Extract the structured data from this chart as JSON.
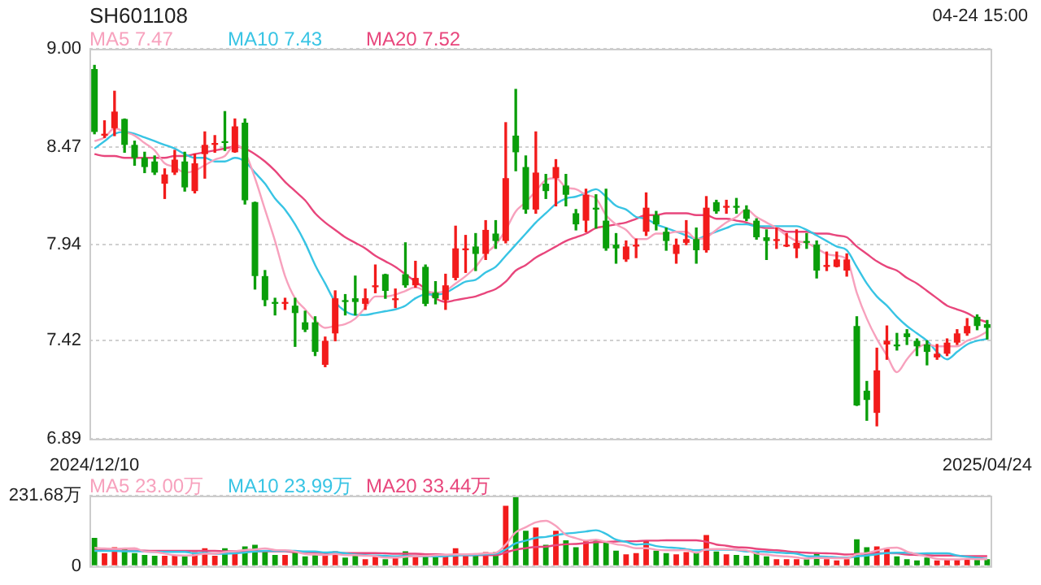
{
  "chart_data": [
    {
      "type": "candlestick",
      "title": "SH601108",
      "annotations": [
        "04-24 15:00"
      ],
      "categories": [
        "2024/12/10",
        null,
        null,
        null,
        null,
        null,
        null,
        null,
        null,
        null,
        null,
        null,
        null,
        null,
        null,
        null,
        null,
        null,
        null,
        null,
        null,
        null,
        null,
        null,
        null,
        null,
        null,
        null,
        null,
        null,
        null,
        null,
        null,
        null,
        null,
        null,
        null,
        null,
        null,
        null,
        null,
        null,
        null,
        null,
        null,
        null,
        null,
        null,
        null,
        null,
        null,
        null,
        null,
        null,
        null,
        null,
        null,
        null,
        null,
        null,
        null,
        null,
        null,
        null,
        null,
        null,
        null,
        null,
        null,
        null,
        null,
        null,
        null,
        null,
        null,
        null,
        null,
        null,
        null,
        null,
        null,
        null,
        null,
        null,
        null,
        null,
        null,
        null,
        null,
        "2025/04/24"
      ],
      "ohlc": [
        [
          8.89,
          8.91,
          8.54,
          8.55
        ],
        [
          8.53,
          8.61,
          8.52,
          8.54
        ],
        [
          8.57,
          8.77,
          8.53,
          8.66
        ],
        [
          8.62,
          8.62,
          8.44,
          8.48
        ],
        [
          8.48,
          8.5,
          8.37,
          8.41
        ],
        [
          8.41,
          8.44,
          8.33,
          8.36
        ],
        [
          8.39,
          8.42,
          8.32,
          8.33
        ],
        [
          8.27,
          8.35,
          8.19,
          8.32
        ],
        [
          8.33,
          8.45,
          8.32,
          8.4
        ],
        [
          8.39,
          8.44,
          8.23,
          8.25
        ],
        [
          8.23,
          8.43,
          8.22,
          8.38
        ],
        [
          8.43,
          8.55,
          8.3,
          8.48
        ],
        [
          8.48,
          8.53,
          8.44,
          8.49
        ],
        [
          8.5,
          8.66,
          8.45,
          8.49
        ],
        [
          8.44,
          8.62,
          8.44,
          8.58
        ],
        [
          8.6,
          8.62,
          8.16,
          8.18
        ],
        [
          8.17,
          8.17,
          7.7,
          7.77
        ],
        [
          7.77,
          7.8,
          7.61,
          7.64
        ],
        [
          7.63,
          7.65,
          7.56,
          7.62
        ],
        [
          7.62,
          7.65,
          7.59,
          7.63
        ],
        [
          7.61,
          7.65,
          7.39,
          7.57
        ],
        [
          7.52,
          7.58,
          7.47,
          7.48
        ],
        [
          7.52,
          7.55,
          7.34,
          7.36
        ],
        [
          7.29,
          7.44,
          7.28,
          7.42
        ],
        [
          7.46,
          7.69,
          7.42,
          7.65
        ],
        [
          7.64,
          7.67,
          7.56,
          7.63
        ],
        [
          7.65,
          7.77,
          7.56,
          7.63
        ],
        [
          7.62,
          7.7,
          7.59,
          7.65
        ],
        [
          7.71,
          7.83,
          7.68,
          7.72
        ],
        [
          7.78,
          7.78,
          7.65,
          7.69
        ],
        [
          7.64,
          7.7,
          7.6,
          7.65
        ],
        [
          7.78,
          7.95,
          7.71,
          7.72
        ],
        [
          7.72,
          7.85,
          7.71,
          7.76
        ],
        [
          7.82,
          7.83,
          7.61,
          7.62
        ],
        [
          7.68,
          7.74,
          7.62,
          7.65
        ],
        [
          7.64,
          7.78,
          7.59,
          7.72
        ],
        [
          7.76,
          8.04,
          7.75,
          7.92
        ],
        [
          7.91,
          7.99,
          7.79,
          7.92
        ],
        [
          7.93,
          8.0,
          7.8,
          7.89
        ],
        [
          7.89,
          8.07,
          7.86,
          8.02
        ],
        [
          8.0,
          8.07,
          7.92,
          7.96
        ],
        [
          7.96,
          8.6,
          7.95,
          8.3
        ],
        [
          8.53,
          8.78,
          8.34,
          8.44
        ],
        [
          8.36,
          8.42,
          8.11,
          8.13
        ],
        [
          8.13,
          8.55,
          8.11,
          8.33
        ],
        [
          8.27,
          8.32,
          8.19,
          8.23
        ],
        [
          8.3,
          8.4,
          8.15,
          8.36
        ],
        [
          8.26,
          8.32,
          8.15,
          8.21
        ],
        [
          8.11,
          8.13,
          8.02,
          8.05
        ],
        [
          8.07,
          8.24,
          8.01,
          8.21
        ],
        [
          8.14,
          8.21,
          8.03,
          8.13
        ],
        [
          8.07,
          8.24,
          7.91,
          7.92
        ],
        [
          7.94,
          8.0,
          7.84,
          7.92
        ],
        [
          7.86,
          7.96,
          7.85,
          7.93
        ],
        [
          7.93,
          7.97,
          7.87,
          7.94
        ],
        [
          8.01,
          8.22,
          7.99,
          8.14
        ],
        [
          8.1,
          8.12,
          8.02,
          8.05
        ],
        [
          8.01,
          8.03,
          7.91,
          7.96
        ],
        [
          7.89,
          7.97,
          7.84,
          7.94
        ],
        [
          7.95,
          8.07,
          7.94,
          7.97
        ],
        [
          7.97,
          8.03,
          7.84,
          7.91
        ],
        [
          7.91,
          8.2,
          7.9,
          8.14
        ],
        [
          8.17,
          8.18,
          8.11,
          8.12
        ],
        [
          8.14,
          8.18,
          8.11,
          8.15
        ],
        [
          8.15,
          8.19,
          8.11,
          8.14
        ],
        [
          8.13,
          8.15,
          8.07,
          8.08
        ],
        [
          8.07,
          8.08,
          7.97,
          7.98
        ],
        [
          7.98,
          8.02,
          7.86,
          7.96
        ],
        [
          7.96,
          8.03,
          7.92,
          7.97
        ],
        [
          7.93,
          8.0,
          7.93,
          7.94
        ],
        [
          7.92,
          8.02,
          7.87,
          7.95
        ],
        [
          7.96,
          8.0,
          7.92,
          7.95
        ],
        [
          7.94,
          7.96,
          7.76,
          7.8
        ],
        [
          7.82,
          7.9,
          7.8,
          7.83
        ],
        [
          7.82,
          7.9,
          7.82,
          7.86
        ],
        [
          7.8,
          7.89,
          7.77,
          7.86
        ],
        [
          7.5,
          7.55,
          7.07,
          7.07
        ],
        [
          7.15,
          7.2,
          6.99,
          7.1
        ],
        [
          7.03,
          7.38,
          6.96,
          7.26
        ],
        [
          7.4,
          7.5,
          7.32,
          7.42
        ],
        [
          7.4,
          7.46,
          7.37,
          7.39
        ],
        [
          7.46,
          7.48,
          7.4,
          7.44
        ],
        [
          7.42,
          7.43,
          7.34,
          7.39
        ],
        [
          7.4,
          7.42,
          7.29,
          7.36
        ],
        [
          7.33,
          7.4,
          7.32,
          7.35
        ],
        [
          7.35,
          7.43,
          7.34,
          7.41
        ],
        [
          7.41,
          7.48,
          7.4,
          7.46
        ],
        [
          7.46,
          7.54,
          7.45,
          7.5
        ],
        [
          7.55,
          7.56,
          7.48,
          7.5
        ],
        [
          7.51,
          7.53,
          7.43,
          7.49
        ]
      ],
      "colors": [
        "#0a9e0a",
        "#f21b1b",
        "#f21b1b",
        "#0a9e0a",
        "#0a9e0a",
        "#0a9e0a",
        "#0a9e0a",
        "#f21b1b",
        "#f21b1b",
        "#0a9e0a",
        "#f21b1b",
        "#f21b1b",
        "#f21b1b",
        "#0a9e0a",
        "#f21b1b",
        "#0a9e0a",
        "#0a9e0a",
        "#0a9e0a",
        "#0a9e0a",
        "#f21b1b",
        "#0a9e0a",
        "#0a9e0a",
        "#0a9e0a",
        "#f21b1b",
        "#f21b1b",
        "#0a9e0a",
        "#0a9e0a",
        "#f21b1b",
        "#f21b1b",
        "#0a9e0a",
        "#f21b1b",
        "#0a9e0a",
        "#f21b1b",
        "#0a9e0a",
        "#0a9e0a",
        "#f21b1b",
        "#f21b1b",
        "#f21b1b",
        "#0a9e0a",
        "#f21b1b",
        "#0a9e0a",
        "#f21b1b",
        "#0a9e0a",
        "#0a9e0a",
        "#f21b1b",
        "#0a9e0a",
        "#f21b1b",
        "#0a9e0a",
        "#0a9e0a",
        "#f21b1b",
        "#0a9e0a",
        "#0a9e0a",
        "#0a9e0a",
        "#f21b1b",
        "#f21b1b",
        "#f21b1b",
        "#0a9e0a",
        "#0a9e0a",
        "#f21b1b",
        "#f21b1b",
        "#0a9e0a",
        "#f21b1b",
        "#0a9e0a",
        "#f21b1b",
        "#0a9e0a",
        "#0a9e0a",
        "#0a9e0a",
        "#0a9e0a",
        "#f21b1b",
        "#f21b1b",
        "#f21b1b",
        "#0a9e0a",
        "#0a9e0a",
        "#f21b1b",
        "#f21b1b",
        "#f21b1b",
        "#0a9e0a",
        "#0a9e0a",
        "#f21b1b",
        "#f21b1b",
        "#0a9e0a",
        "#0a9e0a",
        "#0a9e0a",
        "#0a9e0a",
        "#f21b1b",
        "#f21b1b",
        "#f21b1b",
        "#f21b1b",
        "#0a9e0a",
        "#0a9e0a"
      ],
      "series": [
        {
          "type": "line",
          "name": "MA5 7.47",
          "color": "#f7a1bd",
          "values": [
            8.5,
            8.52,
            8.57,
            8.55,
            8.53,
            8.49,
            8.45,
            8.38,
            8.36,
            8.33,
            8.34,
            8.37,
            8.4,
            8.42,
            8.48,
            8.44,
            8.3,
            8.13,
            7.96,
            7.77,
            7.65,
            7.59,
            7.53,
            7.49,
            7.5,
            7.51,
            7.54,
            7.6,
            7.66,
            7.66,
            7.67,
            7.69,
            7.71,
            7.69,
            7.68,
            7.69,
            7.73,
            7.77,
            7.82,
            7.89,
            7.94,
            8.02,
            8.12,
            8.17,
            8.23,
            8.29,
            8.3,
            8.25,
            8.24,
            8.21,
            8.19,
            8.1,
            8.05,
            8.02,
            7.97,
            7.97,
            8.0,
            8.0,
            8.01,
            8.01,
            7.97,
            7.98,
            8.02,
            8.06,
            8.09,
            8.13,
            8.09,
            8.06,
            8.03,
            7.99,
            7.96,
            7.95,
            7.92,
            7.89,
            7.88,
            7.86,
            7.68,
            7.54,
            7.43,
            7.34,
            7.25,
            7.32,
            7.38,
            7.4,
            7.39,
            7.39,
            7.39,
            7.42,
            7.44,
            7.47
          ]
        },
        {
          "type": "line",
          "name": "MA10 7.43",
          "color": "#38c4e4",
          "values": [
            8.46,
            8.5,
            8.54,
            8.55,
            8.54,
            8.52,
            8.5,
            8.48,
            8.46,
            8.43,
            8.41,
            8.41,
            8.39,
            8.39,
            8.41,
            8.39,
            8.33,
            8.27,
            8.19,
            8.13,
            8.05,
            7.95,
            7.83,
            7.73,
            7.63,
            7.58,
            7.56,
            7.56,
            7.57,
            7.58,
            7.59,
            7.61,
            7.65,
            7.67,
            7.67,
            7.68,
            7.71,
            7.74,
            7.75,
            7.79,
            7.82,
            7.88,
            7.94,
            8.0,
            8.06,
            8.11,
            8.16,
            8.19,
            8.2,
            8.22,
            8.24,
            8.2,
            8.15,
            8.13,
            8.09,
            8.08,
            8.05,
            8.03,
            8.01,
            7.99,
            7.97,
            7.99,
            8.01,
            8.03,
            8.05,
            8.05,
            8.04,
            8.04,
            8.04,
            8.04,
            8.04,
            8.02,
            7.99,
            7.96,
            7.93,
            7.91,
            7.82,
            7.73,
            7.66,
            7.61,
            7.55,
            7.5,
            7.46,
            7.42,
            7.36,
            7.32,
            7.36,
            7.4,
            7.42,
            7.43
          ]
        },
        {
          "type": "line",
          "name": "MA20 7.52",
          "color": "#e8467c",
          "values": [
            8.43,
            8.42,
            8.42,
            8.41,
            8.41,
            8.41,
            8.41,
            8.41,
            8.42,
            8.42,
            8.43,
            8.44,
            8.45,
            8.46,
            8.47,
            8.46,
            8.43,
            8.39,
            8.34,
            8.28,
            8.23,
            8.18,
            8.11,
            8.06,
            8.02,
            7.98,
            7.95,
            7.92,
            7.88,
            7.85,
            7.82,
            7.78,
            7.74,
            7.7,
            7.65,
            7.63,
            7.64,
            7.65,
            7.66,
            7.68,
            7.7,
            7.74,
            7.8,
            7.83,
            7.87,
            7.9,
            7.93,
            7.96,
            7.98,
            8.0,
            8.03,
            8.04,
            8.05,
            8.06,
            8.08,
            8.1,
            8.1,
            8.11,
            8.11,
            8.11,
            8.1,
            8.1,
            8.08,
            8.08,
            8.07,
            8.06,
            8.04,
            8.03,
            8.03,
            8.01,
            8.01,
            8.01,
            8.0,
            8.0,
            7.99,
            7.98,
            7.93,
            7.89,
            7.85,
            7.82,
            7.8,
            7.76,
            7.73,
            7.69,
            7.65,
            7.61,
            7.59,
            7.57,
            7.54,
            7.52
          ]
        }
      ],
      "ylim": [
        6.89,
        9.0
      ],
      "yticks": [
        {
          "value": 9.0,
          "label": "9.00"
        },
        8.47,
        7.94,
        7.42,
        6.89
      ],
      "grid": "y",
      "legend": "top left"
    },
    {
      "type": "bar",
      "categories": [
        "2024/12/10",
        null,
        null,
        null,
        null,
        null,
        null,
        null,
        null,
        null,
        null,
        null,
        null,
        null,
        null,
        null,
        null,
        null,
        null,
        null,
        null,
        null,
        null,
        null,
        null,
        null,
        null,
        null,
        null,
        null,
        null,
        null,
        null,
        null,
        null,
        null,
        null,
        null,
        null,
        null,
        null,
        null,
        null,
        null,
        null,
        null,
        null,
        null,
        null,
        null,
        null,
        null,
        null,
        null,
        null,
        null,
        null,
        null,
        null,
        null,
        null,
        null,
        null,
        null,
        null,
        null,
        null,
        null,
        null,
        null,
        null,
        null,
        null,
        null,
        null,
        null,
        null,
        null,
        null,
        null,
        null,
        null,
        null,
        null,
        null,
        null,
        null,
        null,
        null,
        "2025/04/24"
      ],
      "series": [
        {
          "type": "bar",
          "colors": [
            "#0a9e0a",
            "#f21b1b",
            "#f21b1b",
            "#0a9e0a",
            "#0a9e0a",
            "#0a9e0a",
            "#0a9e0a",
            "#f21b1b",
            "#f21b1b",
            "#0a9e0a",
            "#f21b1b",
            "#f21b1b",
            "#f21b1b",
            "#0a9e0a",
            "#f21b1b",
            "#0a9e0a",
            "#0a9e0a",
            "#0a9e0a",
            "#0a9e0a",
            "#f21b1b",
            "#0a9e0a",
            "#0a9e0a",
            "#0a9e0a",
            "#f21b1b",
            "#f21b1b",
            "#0a9e0a",
            "#0a9e0a",
            "#f21b1b",
            "#f21b1b",
            "#0a9e0a",
            "#f21b1b",
            "#0a9e0a",
            "#f21b1b",
            "#0a9e0a",
            "#0a9e0a",
            "#f21b1b",
            "#f21b1b",
            "#f21b1b",
            "#0a9e0a",
            "#f21b1b",
            "#0a9e0a",
            "#f21b1b",
            "#0a9e0a",
            "#0a9e0a",
            "#f21b1b",
            "#0a9e0a",
            "#f21b1b",
            "#0a9e0a",
            "#0a9e0a",
            "#f21b1b",
            "#0a9e0a",
            "#0a9e0a",
            "#0a9e0a",
            "#f21b1b",
            "#f21b1b",
            "#f21b1b",
            "#0a9e0a",
            "#0a9e0a",
            "#f21b1b",
            "#f21b1b",
            "#0a9e0a",
            "#f21b1b",
            "#0a9e0a",
            "#f21b1b",
            "#0a9e0a",
            "#0a9e0a",
            "#0a9e0a",
            "#0a9e0a",
            "#f21b1b",
            "#f21b1b",
            "#f21b1b",
            "#0a9e0a",
            "#0a9e0a",
            "#f21b1b",
            "#f21b1b",
            "#f21b1b",
            "#0a9e0a",
            "#0a9e0a",
            "#f21b1b",
            "#f21b1b",
            "#0a9e0a",
            "#0a9e0a",
            "#0a9e0a",
            "#0a9e0a",
            "#f21b1b",
            "#f21b1b",
            "#f21b1b",
            "#f21b1b",
            "#0a9e0a",
            "#0a9e0a"
          ],
          "values": [
            93,
            42,
            62,
            57,
            43,
            37,
            34,
            34,
            34,
            34,
            46,
            59,
            34,
            59,
            46,
            65,
            70,
            49,
            37,
            37,
            46,
            32,
            37,
            34,
            49,
            28,
            34,
            23,
            32,
            23,
            28,
            49,
            34,
            34,
            34,
            36,
            59,
            34,
            37,
            46,
            46,
            198,
            231.68,
            116,
            127,
            70,
            116,
            85,
            62,
            85,
            85,
            77,
            51,
            39,
            43,
            85,
            51,
            43,
            39,
            46,
            43,
            102,
            48,
            39,
            37,
            34,
            46,
            32,
            23,
            23,
            23,
            23,
            43,
            23,
            19,
            23,
            88,
            62,
            65,
            57,
            32,
            23,
            19,
            28,
            19,
            23,
            22,
            26,
            23,
            23
          ]
        },
        {
          "type": "line",
          "name": "MA5 23.00万",
          "color": "#f7a1bd",
          "values": [
            60,
            58,
            57,
            58,
            59,
            48,
            47,
            41,
            36,
            35,
            36,
            41,
            41,
            46,
            49,
            53,
            55,
            58,
            53,
            52,
            48,
            40,
            38,
            37,
            40,
            36,
            36,
            34,
            33,
            28,
            28,
            31,
            33,
            34,
            36,
            37,
            39,
            39,
            40,
            42,
            44,
            71,
            111,
            128,
            144,
            149,
            132,
            103,
            92,
            84,
            87,
            79,
            72,
            67,
            59,
            59,
            54,
            52,
            52,
            53,
            44,
            55,
            56,
            56,
            54,
            52,
            41,
            38,
            34,
            32,
            29,
            25,
            27,
            27,
            26,
            26,
            39,
            43,
            51,
            59,
            61,
            48,
            39,
            32,
            24,
            22,
            22,
            24,
            23,
            23
          ]
        },
        {
          "type": "line",
          "name": "MA10 23.99万",
          "color": "#38c4e4",
          "values": [
            50,
            50,
            50,
            49,
            49,
            48,
            47,
            47,
            47,
            47,
            42,
            44,
            41,
            41,
            42,
            45,
            48,
            50,
            50,
            50,
            50,
            48,
            48,
            45,
            46,
            42,
            38,
            36,
            35,
            34,
            32,
            34,
            33,
            33,
            32,
            33,
            35,
            36,
            37,
            39,
            41,
            55,
            75,
            84,
            93,
            96,
            102,
            107,
            110,
            114,
            118,
            106,
            87,
            80,
            71,
            73,
            66,
            62,
            60,
            56,
            52,
            54,
            54,
            54,
            53,
            48,
            48,
            47,
            45,
            43,
            41,
            33,
            32,
            31,
            29,
            28,
            32,
            35,
            39,
            43,
            44,
            44,
            41,
            42,
            42,
            42,
            35,
            31,
            27,
            24
          ]
        },
        {
          "type": "line",
          "name": "MA20 33.44万",
          "color": "#e8467c",
          "values": [
            52,
            52,
            52,
            51,
            51,
            51,
            50,
            50,
            50,
            50,
            50,
            50,
            50,
            49,
            49,
            49,
            49,
            49,
            49,
            49,
            46,
            46,
            45,
            43,
            44,
            43,
            43,
            43,
            43,
            42,
            41,
            41,
            41,
            39,
            39,
            37,
            37,
            36,
            36,
            36,
            36,
            45,
            54,
            59,
            63,
            64,
            69,
            72,
            73,
            76,
            79,
            80,
            81,
            82,
            82,
            84,
            84,
            85,
            85,
            85,
            85,
            80,
            71,
            67,
            62,
            61,
            57,
            54,
            52,
            49,
            46,
            44,
            43,
            42,
            41,
            38,
            40,
            41,
            42,
            43,
            42,
            38,
            37,
            36,
            35,
            35,
            34,
            33,
            33,
            33
          ]
        }
      ],
      "ylim": [
        0,
        231.68
      ],
      "yticks": [
        0,
        {
          "value": 231.68,
          "label": "231.68万"
        }
      ],
      "grid": "y",
      "legend": "top left",
      "tick_labels": "y"
    }
  ]
}
